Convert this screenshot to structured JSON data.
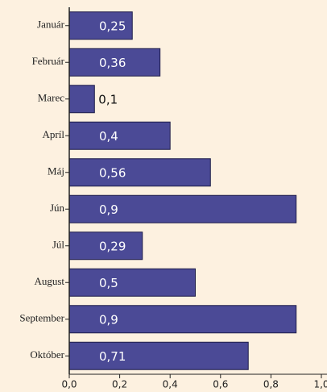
{
  "chart_data": {
    "type": "bar",
    "orientation": "horizontal",
    "categories": [
      "Január",
      "Február",
      "Marec",
      "Apríl",
      "Máj",
      "Jún",
      "Júl",
      "August",
      "September",
      "Október"
    ],
    "values": [
      0.25,
      0.36,
      0.1,
      0.4,
      0.56,
      0.9,
      0.29,
      0.5,
      0.9,
      0.71
    ],
    "value_labels": [
      "0,25",
      "0,36",
      "0,1",
      "0,4",
      "0,56",
      "0,9",
      "0,29",
      "0,5",
      "0,9",
      "0,71"
    ],
    "color": "#4b4a96",
    "xlim": [
      0,
      1
    ],
    "xticks": [
      {
        "value": 0,
        "label": "0,0"
      },
      {
        "value": 0.2,
        "label": "0,2"
      },
      {
        "value": 0.4,
        "label": "0,4"
      },
      {
        "value": 0.6,
        "label": "0,6"
      },
      {
        "value": 0.8,
        "label": "0,8"
      },
      {
        "value": 1,
        "label": "1,0"
      }
    ]
  }
}
